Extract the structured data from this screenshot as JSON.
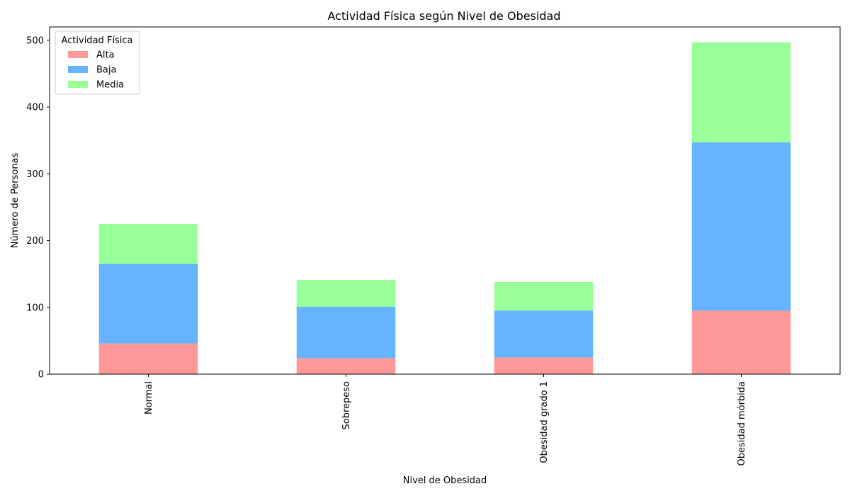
{
  "chart_data": {
    "type": "bar",
    "stacked": true,
    "title": "Actividad Física según Nivel de Obesidad",
    "xlabel": "Nivel de Obesidad",
    "ylabel": "Número de Personas",
    "categories": [
      "Normal",
      "Sobrepeso",
      "Obesidad grado 1",
      "Obesidad mórbida"
    ],
    "ylim": [
      0,
      520
    ],
    "yticks": [
      0,
      100,
      200,
      300,
      400,
      500
    ],
    "legend": {
      "title": "Actividad Física",
      "placement": "top-left"
    },
    "grid": false,
    "series": [
      {
        "name": "Alta",
        "color": "#ff9999",
        "values": [
          46,
          24,
          25,
          95
        ]
      },
      {
        "name": "Baja",
        "color": "#66b3ff",
        "values": [
          119,
          77,
          70,
          252
        ]
      },
      {
        "name": "Media",
        "color": "#99ff99",
        "values": [
          60,
          40,
          43,
          150
        ]
      }
    ]
  }
}
